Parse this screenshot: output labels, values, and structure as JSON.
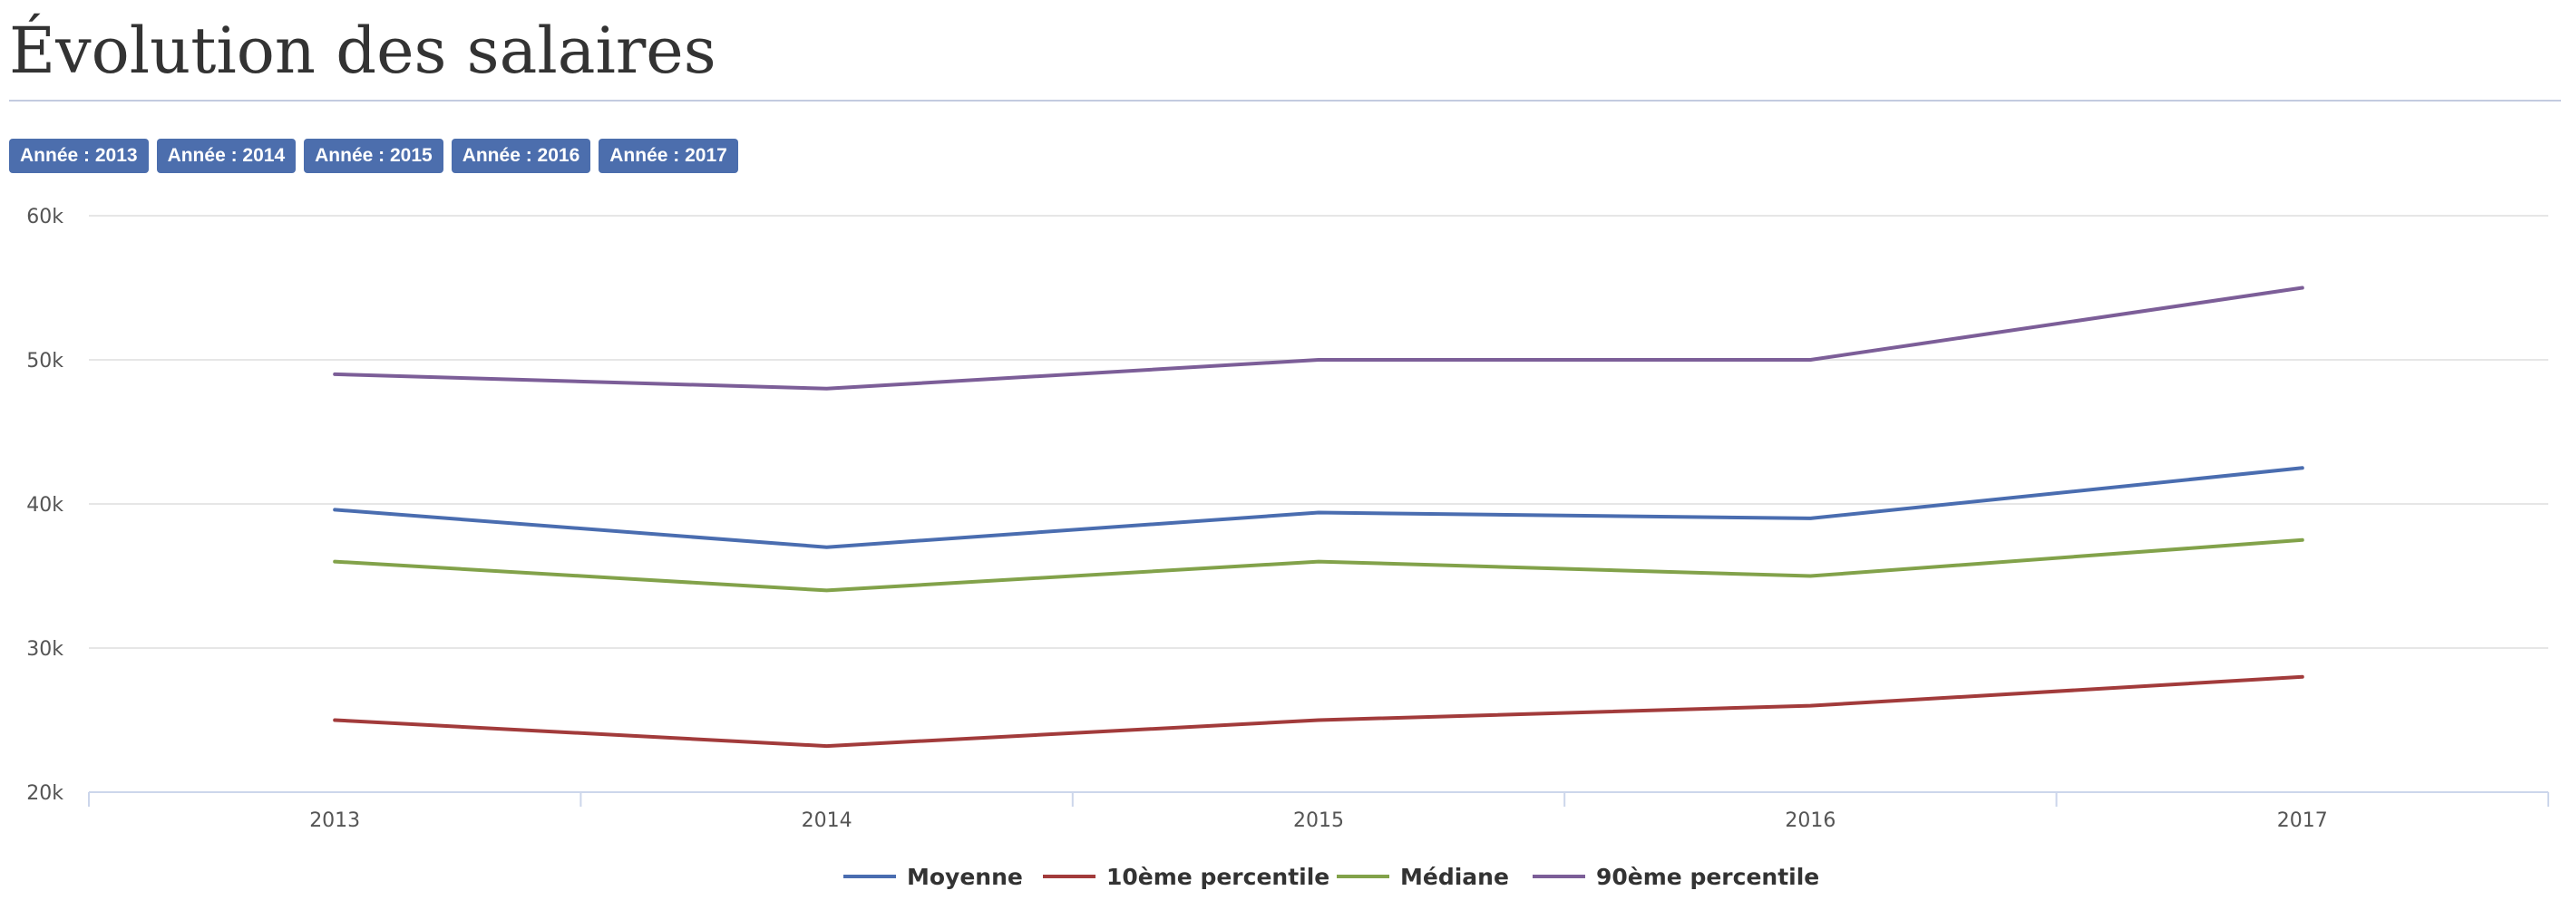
{
  "page": {
    "title": "Évolution des salaires"
  },
  "filters": {
    "year_buttons": [
      {
        "label": "Année : 2013"
      },
      {
        "label": "Année : 2014"
      },
      {
        "label": "Année : 2015"
      },
      {
        "label": "Année : 2016"
      },
      {
        "label": "Année : 2017"
      }
    ]
  },
  "chart_data": {
    "type": "line",
    "x": [
      "2013",
      "2014",
      "2015",
      "2016",
      "2017"
    ],
    "ylim": [
      20000,
      60000
    ],
    "y_ticks": [
      20000,
      30000,
      40000,
      50000,
      60000
    ],
    "y_tick_labels": [
      "20k",
      "30k",
      "40k",
      "50k",
      "60k"
    ],
    "grid": true,
    "legend_position": "bottom-center",
    "series": [
      {
        "name": "Moyenne",
        "color": "#4a6db0",
        "values": [
          39600,
          37000,
          39400,
          39000,
          42500
        ]
      },
      {
        "name": "10ème percentile",
        "color": "#a23b3b",
        "values": [
          25000,
          23200,
          25000,
          26000,
          28000
        ]
      },
      {
        "name": "Médiane",
        "color": "#82a24a",
        "values": [
          36000,
          34000,
          36000,
          35000,
          37500
        ]
      },
      {
        "name": "90ème percentile",
        "color": "#7c5e98",
        "values": [
          49000,
          48000,
          50000,
          50000,
          55000
        ]
      }
    ]
  }
}
